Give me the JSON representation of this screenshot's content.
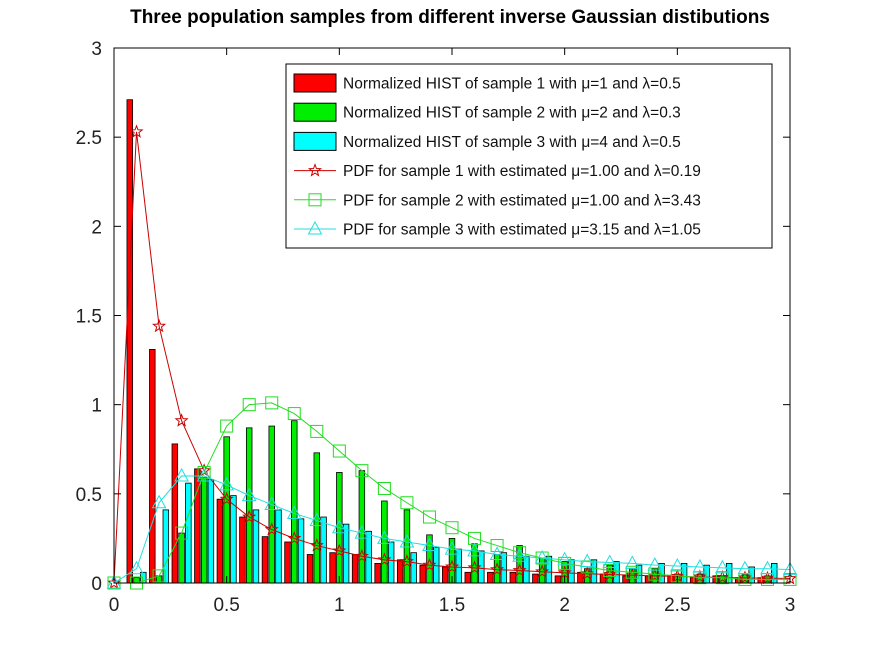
{
  "chart_data": {
    "type": "bar",
    "title": "Three population samples from different inverse Gaussian distibutions",
    "xlabel": "",
    "ylabel": "",
    "xlim": [
      0,
      3
    ],
    "ylim": [
      0,
      3
    ],
    "xticks": [
      0,
      0.5,
      1,
      1.5,
      2,
      2.5,
      3
    ],
    "yticks": [
      0,
      0.5,
      1,
      1.5,
      2,
      2.5,
      3
    ],
    "xtick_labels": [
      "0",
      "0.5",
      "1",
      "1.5",
      "2",
      "2.5",
      "3"
    ],
    "ytick_labels": [
      "0",
      "0.5",
      "1",
      "1.5",
      "2",
      "2.5",
      "3"
    ],
    "grid": false,
    "legend_position": "top-right",
    "x": [
      0.1,
      0.2,
      0.3,
      0.4,
      0.5,
      0.6,
      0.7,
      0.8,
      0.9,
      1.0,
      1.1,
      1.2,
      1.3,
      1.4,
      1.5,
      1.6,
      1.7,
      1.8,
      1.9,
      2.0,
      2.1,
      2.2,
      2.3,
      2.4,
      2.5,
      2.6,
      2.7,
      2.8,
      2.9
    ],
    "series": [
      {
        "name": "Normalized HIST of sample 1 with μ=1 and λ=0.5",
        "kind": "bar",
        "color": "#ff0000",
        "values": [
          2.71,
          1.31,
          0.78,
          0.64,
          0.47,
          0.37,
          0.26,
          0.23,
          0.16,
          0.17,
          0.16,
          0.11,
          0.13,
          0.1,
          0.09,
          0.06,
          0.06,
          0.06,
          0.05,
          0.04,
          0.06,
          0.05,
          0.04,
          0.04,
          0.04,
          0.03,
          0.04,
          0.03,
          0.03
        ]
      },
      {
        "name": "Normalized HIST of sample 2 with μ=2 and λ=0.3",
        "kind": "bar",
        "color": "#00ee00",
        "values": [
          0.03,
          0.04,
          0.28,
          0.59,
          0.82,
          0.87,
          0.88,
          0.91,
          0.73,
          0.62,
          0.63,
          0.46,
          0.41,
          0.27,
          0.25,
          0.22,
          0.16,
          0.21,
          0.14,
          0.12,
          0.08,
          0.1,
          0.08,
          0.08,
          0.05,
          0.05,
          0.04,
          0.05,
          0.04
        ]
      },
      {
        "name": "Normalized HIST of sample 3 with μ=4 and λ=0.5",
        "kind": "bar",
        "color": "#00ffff",
        "values": [
          0.06,
          0.41,
          0.56,
          0.58,
          0.49,
          0.41,
          0.41,
          0.36,
          0.37,
          0.33,
          0.29,
          0.23,
          0.17,
          0.2,
          0.19,
          0.18,
          0.17,
          0.15,
          0.15,
          0.13,
          0.13,
          0.12,
          0.1,
          0.11,
          0.11,
          0.1,
          0.11,
          0.09,
          0.11
        ]
      },
      {
        "name": "PDF for sample 1 with estimated μ=1.00 and λ=0.19",
        "kind": "line",
        "marker": "star",
        "color": "#cc0000",
        "x": [
          0,
          0.1,
          0.2,
          0.3,
          0.4,
          0.5,
          0.6,
          0.7,
          0.8,
          0.9,
          1.0,
          1.1,
          1.2,
          1.3,
          1.4,
          1.5,
          1.6,
          1.7,
          1.8,
          1.9,
          2.0,
          2.1,
          2.2,
          2.3,
          2.4,
          2.5,
          2.6,
          2.7,
          2.8,
          2.9,
          3.0
        ],
        "values": [
          0.0,
          2.53,
          1.44,
          0.91,
          0.63,
          0.47,
          0.37,
          0.3,
          0.25,
          0.21,
          0.18,
          0.15,
          0.13,
          0.12,
          0.1,
          0.09,
          0.085,
          0.075,
          0.07,
          0.063,
          0.057,
          0.052,
          0.048,
          0.044,
          0.04,
          0.037,
          0.034,
          0.031,
          0.029,
          0.027,
          0.025
        ]
      },
      {
        "name": "PDF for sample 2 with estimated μ=1.00 and λ=3.43",
        "kind": "line",
        "marker": "square",
        "color": "#22dd22",
        "x": [
          0,
          0.1,
          0.2,
          0.3,
          0.4,
          0.5,
          0.6,
          0.7,
          0.8,
          0.9,
          1.0,
          1.1,
          1.2,
          1.3,
          1.4,
          1.5,
          1.6,
          1.7,
          1.8,
          1.9,
          2.0,
          2.1,
          2.2,
          2.3,
          2.4,
          2.5,
          2.6,
          2.7,
          2.8,
          2.9,
          3.0
        ],
        "values": [
          0.0,
          0.0,
          0.04,
          0.28,
          0.62,
          0.88,
          1.0,
          1.01,
          0.95,
          0.85,
          0.74,
          0.63,
          0.53,
          0.45,
          0.37,
          0.31,
          0.25,
          0.21,
          0.17,
          0.14,
          0.11,
          0.09,
          0.07,
          0.06,
          0.05,
          0.04,
          0.03,
          0.03,
          0.02,
          0.02,
          0.02
        ]
      },
      {
        "name": "PDF for sample 3 with estimated μ=3.15 and λ=1.05",
        "kind": "line",
        "marker": "triangle",
        "color": "#22dddd",
        "x": [
          0,
          0.1,
          0.2,
          0.3,
          0.4,
          0.5,
          0.6,
          0.7,
          0.8,
          0.9,
          1.0,
          1.1,
          1.2,
          1.3,
          1.4,
          1.5,
          1.6,
          1.7,
          1.8,
          1.9,
          2.0,
          2.1,
          2.2,
          2.3,
          2.4,
          2.5,
          2.6,
          2.7,
          2.8,
          2.9,
          3.0
        ],
        "values": [
          0.0,
          0.08,
          0.45,
          0.6,
          0.6,
          0.55,
          0.49,
          0.44,
          0.39,
          0.35,
          0.31,
          0.28,
          0.25,
          0.23,
          0.21,
          0.19,
          0.18,
          0.16,
          0.15,
          0.14,
          0.13,
          0.12,
          0.115,
          0.11,
          0.1,
          0.095,
          0.09,
          0.085,
          0.08,
          0.08,
          0.075
        ]
      }
    ]
  }
}
